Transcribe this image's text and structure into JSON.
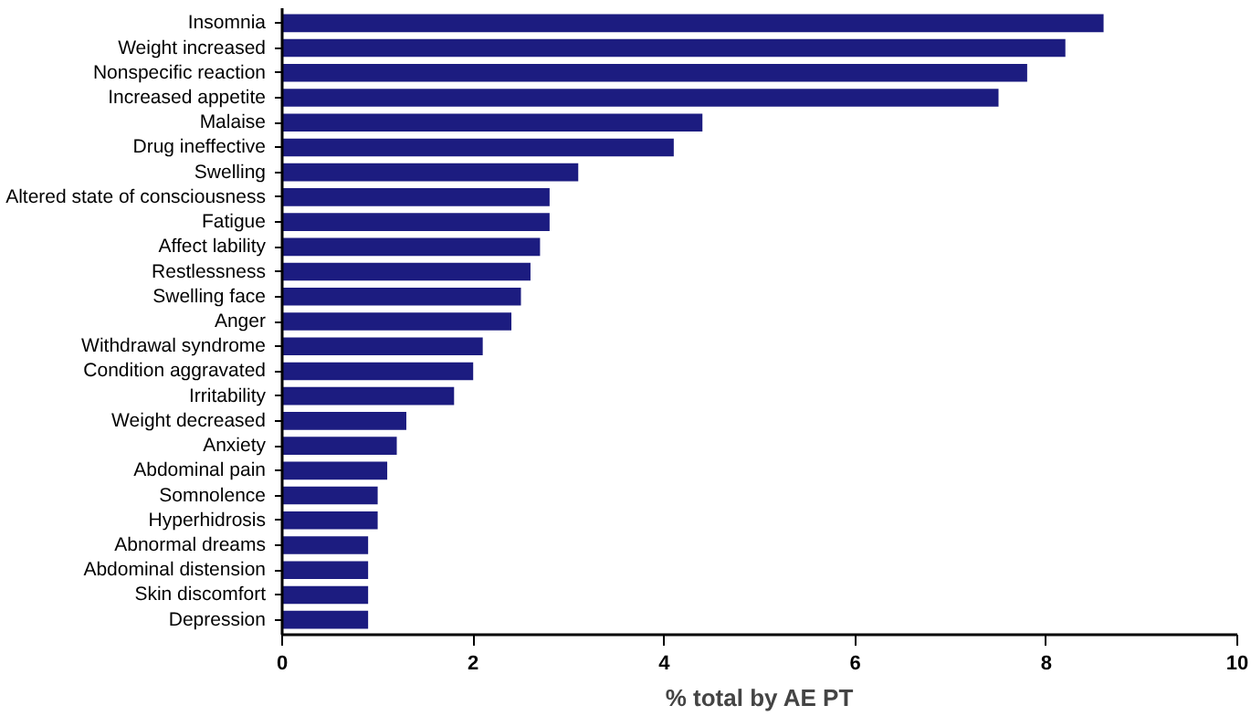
{
  "chart_data": {
    "type": "bar",
    "orientation": "horizontal",
    "xlabel": "% total by AE PT",
    "categories": [
      "Insomnia",
      "Weight increased",
      "Nonspecific reaction",
      "Increased appetite",
      "Malaise",
      "Drug ineffective",
      "Swelling",
      "Altered state of consciousness",
      "Fatigue",
      "Affect lability",
      "Restlessness",
      "Swelling face",
      "Anger",
      "Withdrawal syndrome",
      "Condition aggravated",
      "Irritability",
      "Weight decreased",
      "Anxiety",
      "Abdominal pain",
      "Somnolence",
      "Hyperhidrosis",
      "Abnormal dreams",
      "Abdominal distension",
      "Skin discomfort",
      "Depression"
    ],
    "values": [
      8.6,
      8.2,
      7.8,
      7.5,
      4.4,
      4.1,
      3.1,
      2.8,
      2.8,
      2.7,
      2.6,
      2.5,
      2.4,
      2.1,
      2.0,
      1.8,
      1.3,
      1.2,
      1.1,
      1.0,
      1.0,
      0.9,
      0.9,
      0.9,
      0.9
    ],
    "color": "#1c1c80",
    "xlim": [
      0,
      10
    ],
    "xticks": [
      0,
      2,
      4,
      6,
      8,
      10
    ],
    "grid": false
  }
}
